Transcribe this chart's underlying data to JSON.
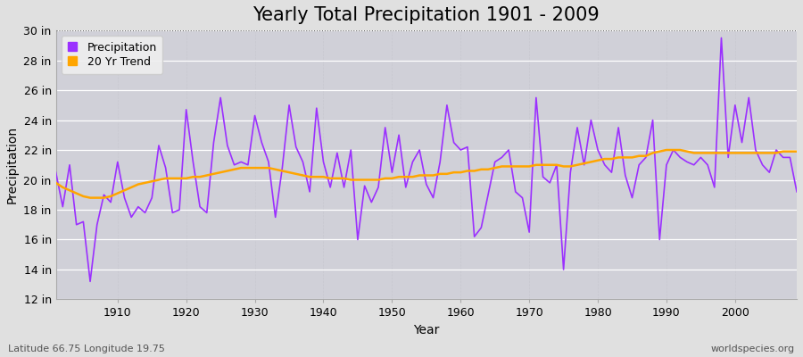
{
  "title": "Yearly Total Precipitation 1901 - 2009",
  "xlabel": "Year",
  "ylabel": "Precipitation",
  "subtitle_left": "Latitude 66.75 Longitude 19.75",
  "subtitle_right": "worldspecies.org",
  "years": [
    1901,
    1902,
    1903,
    1904,
    1905,
    1906,
    1907,
    1908,
    1909,
    1910,
    1911,
    1912,
    1913,
    1914,
    1915,
    1916,
    1917,
    1918,
    1919,
    1920,
    1921,
    1922,
    1923,
    1924,
    1925,
    1926,
    1927,
    1928,
    1929,
    1930,
    1931,
    1932,
    1933,
    1934,
    1935,
    1936,
    1937,
    1938,
    1939,
    1940,
    1941,
    1942,
    1943,
    1944,
    1945,
    1946,
    1947,
    1948,
    1949,
    1950,
    1951,
    1952,
    1953,
    1954,
    1955,
    1956,
    1957,
    1958,
    1959,
    1960,
    1961,
    1962,
    1963,
    1964,
    1965,
    1966,
    1967,
    1968,
    1969,
    1970,
    1971,
    1972,
    1973,
    1974,
    1975,
    1976,
    1977,
    1978,
    1979,
    1980,
    1981,
    1982,
    1983,
    1984,
    1985,
    1986,
    1987,
    1988,
    1989,
    1990,
    1991,
    1992,
    1993,
    1994,
    1995,
    1996,
    1997,
    1998,
    1999,
    2000,
    2001,
    2002,
    2003,
    2004,
    2005,
    2006,
    2007,
    2008,
    2009
  ],
  "precip": [
    20.5,
    18.2,
    21.0,
    17.0,
    17.2,
    13.2,
    17.0,
    19.0,
    18.5,
    21.2,
    18.8,
    17.5,
    18.2,
    17.8,
    18.8,
    22.3,
    20.8,
    17.8,
    18.0,
    24.7,
    21.2,
    18.2,
    17.8,
    22.5,
    25.5,
    22.3,
    21.0,
    21.2,
    21.0,
    24.3,
    22.5,
    21.2,
    17.5,
    20.8,
    25.0,
    22.2,
    21.2,
    19.2,
    24.8,
    21.2,
    19.5,
    21.8,
    19.5,
    22.0,
    16.0,
    19.6,
    18.5,
    19.5,
    23.5,
    20.5,
    23.0,
    19.5,
    21.2,
    22.0,
    19.7,
    18.8,
    21.2,
    25.0,
    22.5,
    22.0,
    22.2,
    16.2,
    16.8,
    19.0,
    21.2,
    21.5,
    22.0,
    19.2,
    18.8,
    16.5,
    25.5,
    20.2,
    19.8,
    21.0,
    14.0,
    20.5,
    23.5,
    21.0,
    24.0,
    22.0,
    21.0,
    20.5,
    23.5,
    20.3,
    18.8,
    21.0,
    21.5,
    24.0,
    16.0,
    21.0,
    22.0,
    21.5,
    21.2,
    21.0,
    21.5,
    21.0,
    19.5,
    29.5,
    21.5,
    25.0,
    22.5,
    25.5,
    22.0,
    21.0,
    20.5,
    22.0,
    21.5,
    21.5,
    19.2
  ],
  "trend": [
    19.8,
    19.5,
    19.3,
    19.1,
    18.9,
    18.8,
    18.8,
    18.8,
    18.9,
    19.1,
    19.3,
    19.5,
    19.7,
    19.8,
    19.9,
    20.0,
    20.1,
    20.1,
    20.1,
    20.1,
    20.2,
    20.2,
    20.3,
    20.4,
    20.5,
    20.6,
    20.7,
    20.8,
    20.8,
    20.8,
    20.8,
    20.8,
    20.7,
    20.6,
    20.5,
    20.4,
    20.3,
    20.2,
    20.2,
    20.2,
    20.1,
    20.1,
    20.1,
    20.0,
    20.0,
    20.0,
    20.0,
    20.0,
    20.1,
    20.1,
    20.2,
    20.2,
    20.2,
    20.3,
    20.3,
    20.3,
    20.4,
    20.4,
    20.5,
    20.5,
    20.6,
    20.6,
    20.7,
    20.7,
    20.8,
    20.9,
    20.9,
    20.9,
    20.9,
    20.9,
    21.0,
    21.0,
    21.0,
    21.0,
    20.9,
    20.9,
    21.0,
    21.1,
    21.2,
    21.3,
    21.4,
    21.4,
    21.5,
    21.5,
    21.5,
    21.6,
    21.6,
    21.8,
    21.9,
    22.0,
    22.0,
    22.0,
    21.9,
    21.8,
    21.8,
    21.8,
    21.8,
    21.8,
    21.8,
    21.8,
    21.8,
    21.8,
    21.8,
    21.8,
    21.8,
    21.8,
    21.9,
    21.9,
    21.9
  ],
  "precip_color": "#9B30FF",
  "trend_color": "#FFA500",
  "bg_color": "#e0e0e0",
  "plot_bg_color": "#d0d0d8",
  "grid_major_color": "#ffffff",
  "grid_minor_color": "#c8c8d0",
  "ylim": [
    12,
    30
  ],
  "yticks": [
    12,
    14,
    16,
    18,
    20,
    22,
    24,
    26,
    28,
    30
  ],
  "xlim": [
    1901,
    2009
  ],
  "title_fontsize": 15,
  "label_fontsize": 10,
  "tick_fontsize": 9,
  "legend_fontsize": 9
}
